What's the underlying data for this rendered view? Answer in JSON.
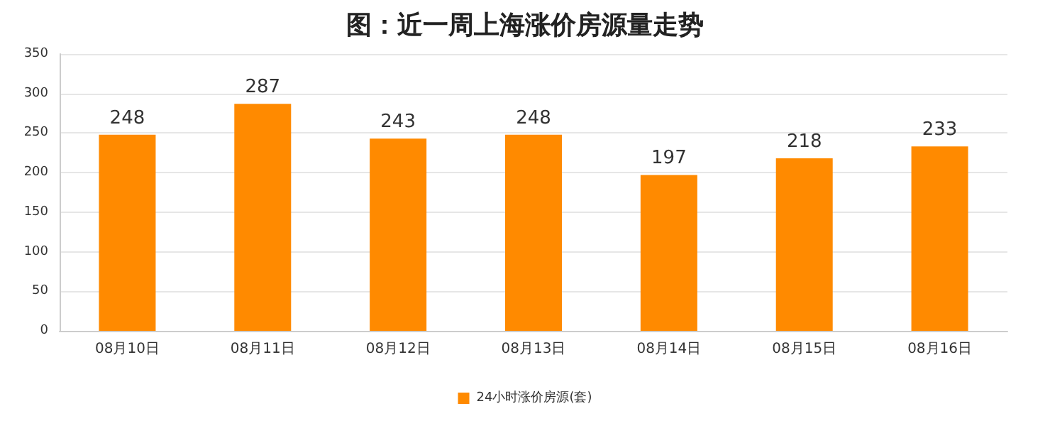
{
  "chart_data": {
    "type": "bar",
    "title": "图：近一周上海涨价房源量走势",
    "categories": [
      "08月10日",
      "08月11日",
      "08月12日",
      "08月13日",
      "08月14日",
      "08月15日",
      "08月16日"
    ],
    "series": [
      {
        "name": "24小时涨价房源(套)",
        "color": "#ff8a00",
        "values": [
          248,
          287,
          243,
          248,
          197,
          218,
          233
        ]
      }
    ],
    "ylim": [
      0,
      350
    ],
    "yticks": [
      0,
      50,
      100,
      150,
      200,
      250,
      300,
      350
    ],
    "grid": "y",
    "legend": "bottom",
    "data_labels": true
  }
}
